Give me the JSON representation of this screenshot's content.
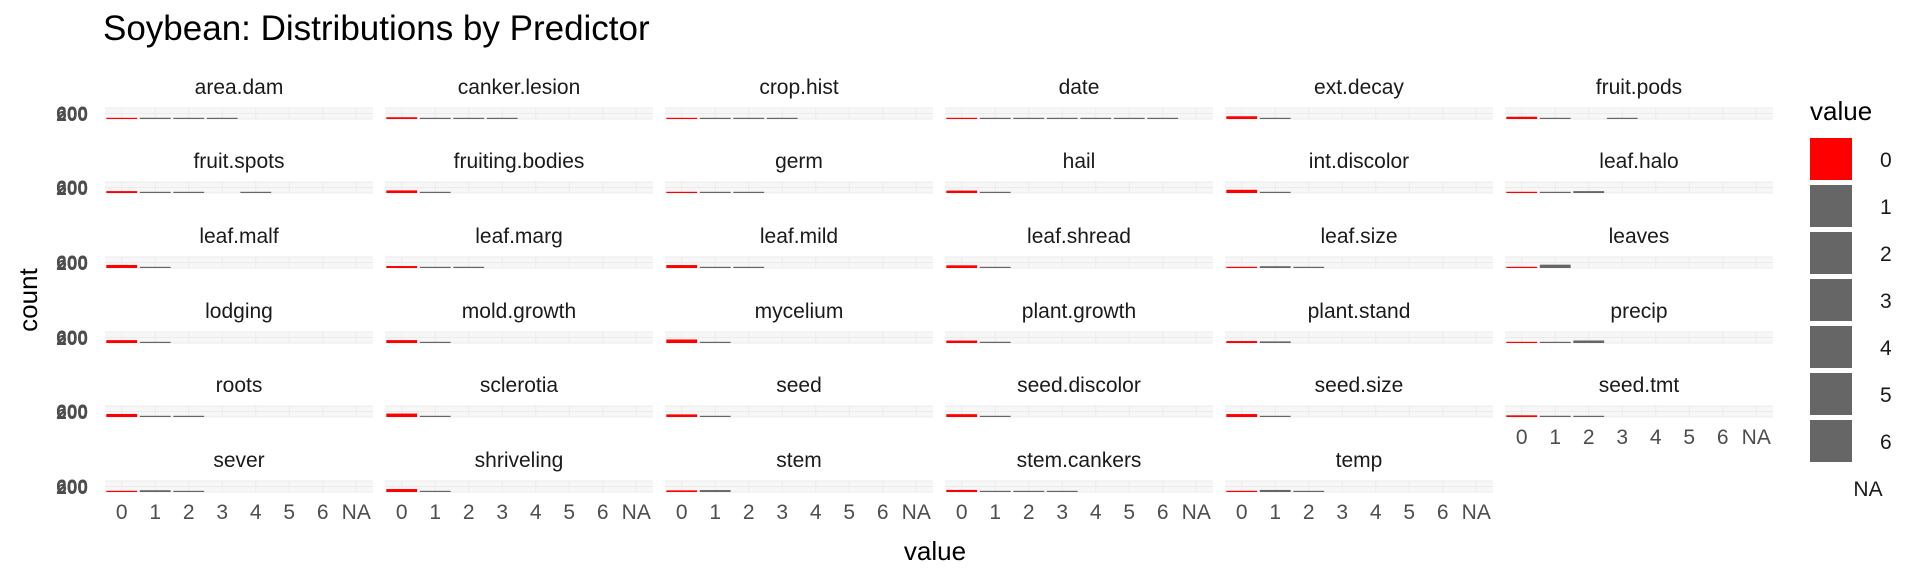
{
  "chart_data": {
    "type": "bar",
    "title": "Soybean: Distributions by Predictor",
    "xlabel": "value",
    "ylabel": "count",
    "categories": [
      "0",
      "1",
      "2",
      "3",
      "4",
      "5",
      "6",
      "NA"
    ],
    "y_ticks": [
      "200",
      "600"
    ],
    "ylim": [
      0,
      2000
    ],
    "grid": true,
    "legend_placement": "right",
    "legend": {
      "title": "value",
      "entries": [
        {
          "label": "0",
          "color": "#FF0000"
        },
        {
          "label": "1",
          "color": "#666666"
        },
        {
          "label": "2",
          "color": "#666666"
        },
        {
          "label": "3",
          "color": "#666666"
        },
        {
          "label": "4",
          "color": "#666666"
        },
        {
          "label": "5",
          "color": "#666666"
        },
        {
          "label": "6",
          "color": "#666666"
        },
        {
          "label": "NA",
          "color": ""
        }
      ]
    },
    "colors": {
      "zero": "#FF0000",
      "other": "#666666",
      "panel_grid": "#EBEBEB"
    },
    "panels": [
      {
        "name": "area.dam",
        "values": [
          123,
          227,
          145,
          187,
          0,
          0,
          0,
          0
        ]
      },
      {
        "name": "canker.lesion",
        "values": [
          320,
          83,
          177,
          103,
          0,
          0,
          0,
          0
        ]
      },
      {
        "name": "crop.hist",
        "values": [
          65,
          165,
          219,
          218,
          0,
          0,
          0,
          0
        ]
      },
      {
        "name": "date",
        "values": [
          26,
          75,
          93,
          118,
          131,
          149,
          90,
          0
        ]
      },
      {
        "name": "ext.decay",
        "values": [
          497,
          135,
          0,
          0,
          0,
          0,
          0,
          0
        ]
      },
      {
        "name": "fruit.pods",
        "values": [
          407,
          130,
          0,
          48,
          0,
          0,
          0,
          0
        ]
      },
      {
        "name": "fruit.spots",
        "values": [
          345,
          75,
          57,
          0,
          100,
          0,
          0,
          0
        ]
      },
      {
        "name": "fruiting.bodies",
        "values": [
          473,
          104,
          0,
          0,
          0,
          0,
          0,
          0
        ]
      },
      {
        "name": "germ",
        "values": [
          165,
          213,
          193,
          0,
          0,
          0,
          0,
          0
        ]
      },
      {
        "name": "hail",
        "values": [
          435,
          127,
          0,
          0,
          0,
          0,
          0,
          0
        ]
      },
      {
        "name": "int.discolor",
        "values": [
          581,
          44,
          0,
          0,
          0,
          0,
          0,
          0
        ]
      },
      {
        "name": "leaf.halo",
        "values": [
          221,
          36,
          342,
          0,
          0,
          0,
          0,
          0
        ]
      },
      {
        "name": "leaf.malf",
        "values": [
          554,
          45,
          0,
          0,
          0,
          0,
          0,
          0
        ]
      },
      {
        "name": "leaf.marg",
        "values": [
          357,
          21,
          221,
          0,
          0,
          0,
          0,
          0
        ]
      },
      {
        "name": "leaf.mild",
        "values": [
          535,
          20,
          20,
          0,
          0,
          0,
          0,
          0
        ]
      },
      {
        "name": "leaf.shread",
        "values": [
          487,
          96,
          0,
          0,
          0,
          0,
          0,
          0
        ]
      },
      {
        "name": "leaf.size",
        "values": [
          51,
          327,
          221,
          0,
          0,
          0,
          0,
          0
        ]
      },
      {
        "name": "leaves",
        "values": [
          77,
          606,
          0,
          0,
          0,
          0,
          0,
          0
        ]
      },
      {
        "name": "lodging",
        "values": [
          520,
          42,
          0,
          0,
          0,
          0,
          0,
          0
        ]
      },
      {
        "name": "mold.growth",
        "values": [
          524,
          67,
          0,
          0,
          0,
          0,
          0,
          0
        ]
      },
      {
        "name": "mycelium",
        "values": [
          639,
          6,
          0,
          0,
          0,
          0,
          0,
          0
        ]
      },
      {
        "name": "plant.growth",
        "values": [
          441,
          226,
          0,
          0,
          0,
          0,
          0,
          0
        ]
      },
      {
        "name": "plant.stand",
        "values": [
          354,
          293,
          0,
          0,
          0,
          0,
          0,
          0
        ]
      },
      {
        "name": "precip",
        "values": [
          74,
          112,
          459,
          0,
          0,
          0,
          0,
          0
        ]
      },
      {
        "name": "roots",
        "values": [
          551,
          86,
          15,
          0,
          0,
          0,
          0,
          0
        ]
      },
      {
        "name": "sclerotia",
        "values": [
          625,
          20,
          0,
          0,
          0,
          0,
          0,
          0
        ]
      },
      {
        "name": "seed",
        "values": [
          476,
          115,
          0,
          0,
          0,
          0,
          0,
          0
        ]
      },
      {
        "name": "seed.discolor",
        "values": [
          513,
          64,
          0,
          0,
          0,
          0,
          0,
          0
        ]
      },
      {
        "name": "seed.size",
        "values": [
          532,
          59,
          0,
          0,
          0,
          0,
          0,
          0
        ]
      },
      {
        "name": "seed.tmt",
        "values": [
          305,
          222,
          35,
          0,
          0,
          0,
          0,
          0
        ]
      },
      {
        "name": "sever",
        "values": [
          195,
          322,
          45,
          0,
          0,
          0,
          0,
          0
        ]
      },
      {
        "name": "shriveling",
        "values": [
          539,
          38,
          0,
          0,
          0,
          0,
          0,
          0
        ]
      },
      {
        "name": "stem",
        "values": [
          296,
          354,
          0,
          0,
          0,
          0,
          0,
          0
        ]
      },
      {
        "name": "stem.cankers",
        "values": [
          379,
          39,
          36,
          191,
          0,
          0,
          0,
          0
        ]
      },
      {
        "name": "temp",
        "values": [
          80,
          374,
          199,
          0,
          0,
          0,
          0,
          0
        ]
      }
    ]
  }
}
